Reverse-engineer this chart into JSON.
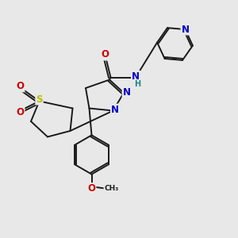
{
  "bg_color": "#e8e8e8",
  "bond_color": "#1a1a1a",
  "atom_colors": {
    "N": "#0000cc",
    "O": "#cc0000",
    "S": "#bbbb00",
    "H": "#228888",
    "C": "#1a1a1a"
  },
  "lw": 1.4,
  "fs": 8.5,
  "fs2": 7.0
}
